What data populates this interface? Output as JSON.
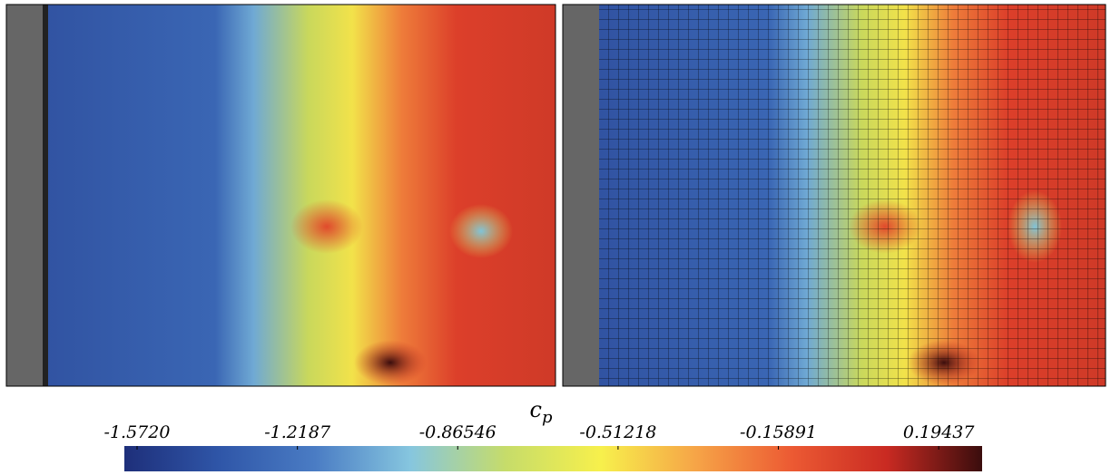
{
  "chart_data": {
    "type": "colorbar",
    "label": {
      "symbol": "c",
      "subscript": "p"
    },
    "clim": [
      -1.6,
      0.29
    ],
    "ticks": [
      {
        "value": -1.572,
        "label": "-1.5720"
      },
      {
        "value": -1.2187,
        "label": "-1.2187"
      },
      {
        "value": -0.86546,
        "label": "-0.86546"
      },
      {
        "value": -0.51218,
        "label": "-0.51218"
      },
      {
        "value": -0.15891,
        "label": "-0.15891"
      },
      0.19437
    ],
    "colormap": [
      "#1e2f7a",
      "#2f56a8",
      "#4a7cc4",
      "#86c6df",
      "#c6dc6a",
      "#f7f04c",
      "#f6a447",
      "#ec5a33",
      "#c92a22",
      "#3a0d0d"
    ]
  }
}
